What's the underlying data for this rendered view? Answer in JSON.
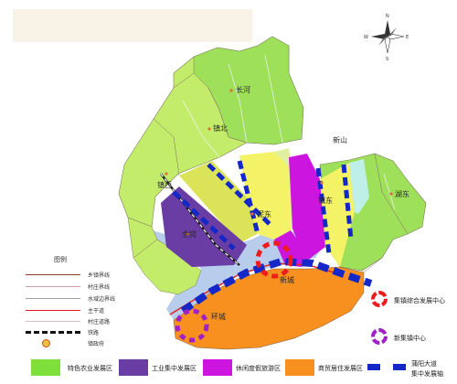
{
  "colors": {
    "agriculture": "#7fe03c",
    "industry": "#6a3da5",
    "leisure": "#cc16e0",
    "commercial": "#f7901e",
    "corridor": "#1428c8",
    "main_center": "#ee1c1c",
    "new_center": "#a020c8",
    "village": "#c3ec6a",
    "village_alt": "#9ee05a",
    "river": "#b8ccec"
  },
  "place_labels": [
    "长河",
    "镇北",
    "镇西",
    "金岗",
    "泥东",
    "镇东",
    "湖东",
    "新山",
    "新城",
    "环城"
  ],
  "compass": {
    "n": "N",
    "s": "S",
    "e": "E",
    "w": "W"
  },
  "legend": {
    "title": "图例",
    "lines": [
      {
        "label": "乡镇界线",
        "color": "#8b3a2a"
      },
      {
        "label": "村庄界线",
        "color": "#c9a0a0"
      },
      {
        "label": "水域边界线",
        "color": "#a0a0a0"
      },
      {
        "label": "主干道",
        "color": "#e02020"
      },
      {
        "label": "村庄道路",
        "color": "#d6c2c2"
      },
      {
        "label": "铁路",
        "color": "#111111"
      },
      {
        "label": "镇政府",
        "color": "#e07030"
      }
    ],
    "zones": [
      {
        "label": "特色农业发展区",
        "color": "#7fe03c"
      },
      {
        "label": "工业集中发展区",
        "color": "#6a3da5"
      },
      {
        "label": "休闲度假旅游区",
        "color": "#cc16e0"
      },
      {
        "label": "商贸居住发展区",
        "color": "#f7901e"
      }
    ],
    "corridor": {
      "line1": "蒲阳大道",
      "line2": "集中发展轴"
    },
    "centers": [
      {
        "label": "集镇综合发展中心",
        "color": "#ee1c1c"
      },
      {
        "label": "新集镇中心",
        "color": "#a020c8"
      }
    ]
  }
}
